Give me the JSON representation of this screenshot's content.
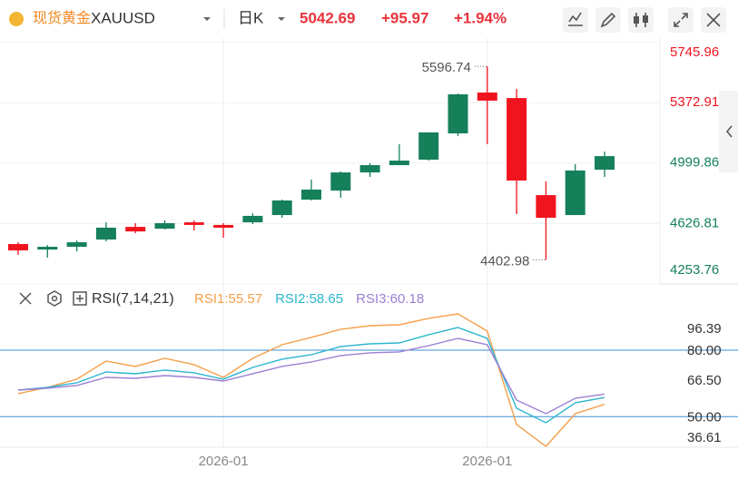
{
  "header": {
    "name": "现货黄金",
    "symbol": "XAUUSD",
    "period": "日K",
    "price": 5042.69,
    "change": "+95.97",
    "change_pct": "+1.94%"
  },
  "chart_data": [
    {
      "type": "candlestick",
      "categories": [
        null,
        null,
        null,
        null,
        null,
        null,
        null,
        "2026-01",
        null,
        null,
        null,
        null,
        null,
        null,
        null,
        null,
        "2026-01",
        null,
        null,
        null,
        null
      ],
      "open": [
        4500,
        4466,
        4483,
        4528,
        4606,
        4595,
        4634,
        4618,
        4634,
        4679,
        4774,
        4830,
        4942,
        4987,
        5021,
        5183,
        5435,
        5401,
        4802,
        4679,
        4959
      ],
      "high": [
        4511,
        4494,
        4522,
        4634,
        4629,
        4646,
        4646,
        4629,
        4690,
        4774,
        4898,
        4948,
        4998,
        5116,
        5189,
        5429,
        5596.74,
        5457,
        4886,
        4993,
        5071
      ],
      "low": [
        4433,
        4416,
        4455,
        4517,
        4567,
        4590,
        4584,
        4539,
        4623,
        4662,
        4769,
        4786,
        4914,
        4987,
        5015,
        5166,
        5116,
        4685,
        4402.98,
        4679,
        4914
      ],
      "close": [
        4461,
        4483,
        4511,
        4601,
        4578,
        4629,
        4618,
        4601,
        4674,
        4769,
        4836,
        4942,
        4987,
        5015,
        5189,
        5424,
        5385,
        4892,
        4662,
        4954,
        5042.69
      ],
      "up_color": "#15805a",
      "down_color": "#f0141e",
      "ylim": [
        4253.76,
        5771
      ],
      "yticks": [
        5745.96,
        5372.91,
        4999.86,
        4626.81,
        4253.76
      ],
      "max_label": 5596.74,
      "min_label": 4402.98,
      "grid": true
    },
    {
      "type": "line",
      "title": "RSI(7,14,21)",
      "ylim": [
        36.61,
        96.39
      ],
      "yticks": [
        96.39,
        {
          "value": 80,
          "label": "80.00"
        },
        {
          "value": 66.5,
          "label": "66.50"
        },
        {
          "value": 50,
          "label": "50.00"
        },
        36.61
      ],
      "hlines": [
        80,
        50
      ],
      "hline_color": "#3d8fd6",
      "series": [
        {
          "name": "RSI1",
          "legend_label": "RSI1:55.57",
          "color": "#f5a04a",
          "values": [
            60.36,
            63.23,
            66.91,
            75.1,
            72.65,
            76.33,
            73.47,
            67.73,
            76.33,
            82.47,
            85.75,
            89.44,
            91.07,
            91.48,
            94.35,
            96.39,
            88.61,
            46.44,
            36.61,
            51.35,
            55.57
          ]
        },
        {
          "name": "RSI2",
          "legend_label": "RSI2:58.65",
          "color": "#2bb5cf",
          "values": [
            62.0,
            63.23,
            65.28,
            70.19,
            69.37,
            71.01,
            69.78,
            66.91,
            72.24,
            75.92,
            77.97,
            81.66,
            82.88,
            83.29,
            86.98,
            90.25,
            85.34,
            53.81,
            47.26,
            56.27,
            58.65
          ]
        },
        {
          "name": "RSI3",
          "legend_label": "RSI3:60.18",
          "color": "#9b7fd4",
          "values": [
            62.0,
            62.82,
            64.05,
            67.73,
            67.32,
            68.55,
            67.73,
            66.09,
            69.37,
            72.65,
            74.69,
            77.56,
            78.79,
            79.2,
            82.06,
            85.34,
            82.47,
            57.49,
            51.35,
            58.31,
            60.18
          ]
        }
      ]
    }
  ]
}
